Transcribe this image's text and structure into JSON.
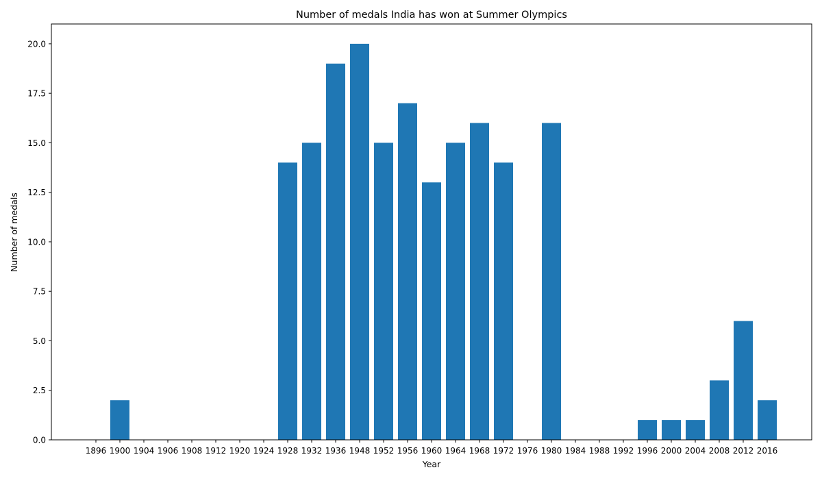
{
  "chart_data": {
    "type": "bar",
    "title": "Number of medals India has won at Summer Olympics",
    "xlabel": "Year",
    "ylabel": "Number of medals",
    "categories": [
      "1896",
      "1900",
      "1904",
      "1906",
      "1908",
      "1912",
      "1920",
      "1924",
      "1928",
      "1932",
      "1936",
      "1948",
      "1952",
      "1956",
      "1960",
      "1964",
      "1968",
      "1972",
      "1976",
      "1980",
      "1984",
      "1988",
      "1992",
      "1996",
      "2000",
      "2004",
      "2008",
      "2012",
      "2016"
    ],
    "values": [
      0,
      2,
      0,
      0,
      0,
      0,
      0,
      0,
      14,
      15,
      19,
      20,
      15,
      17,
      13,
      15,
      16,
      14,
      0,
      16,
      0,
      0,
      0,
      1,
      1,
      1,
      3,
      6,
      2
    ],
    "ylim": [
      0,
      21
    ],
    "yticks": [
      "0.0",
      "2.5",
      "5.0",
      "7.5",
      "10.0",
      "12.5",
      "15.0",
      "17.5",
      "20.0"
    ],
    "bar_color": "#1f77b4",
    "grid": false,
    "legend": null
  }
}
